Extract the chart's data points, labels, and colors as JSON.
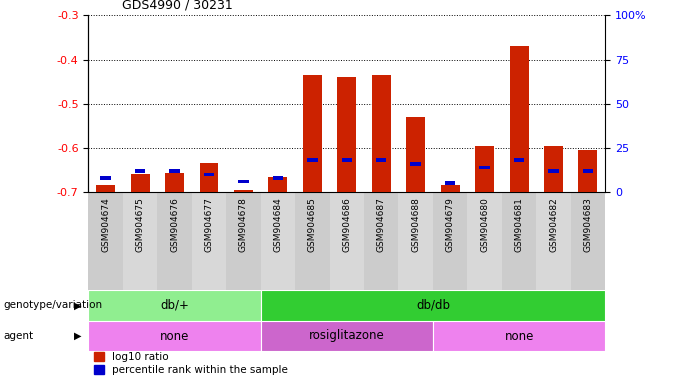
{
  "title": "GDS4990 / 30231",
  "samples": [
    "GSM904674",
    "GSM904675",
    "GSM904676",
    "GSM904677",
    "GSM904678",
    "GSM904684",
    "GSM904685",
    "GSM904686",
    "GSM904687",
    "GSM904688",
    "GSM904679",
    "GSM904680",
    "GSM904681",
    "GSM904682",
    "GSM904683"
  ],
  "log10_ratio": [
    -0.685,
    -0.66,
    -0.658,
    -0.635,
    -0.695,
    -0.665,
    -0.435,
    -0.44,
    -0.435,
    -0.53,
    -0.685,
    -0.595,
    -0.37,
    -0.595,
    -0.605
  ],
  "percentile_rank": [
    8,
    12,
    12,
    10,
    6,
    8,
    18,
    18,
    18,
    16,
    5,
    14,
    18,
    12,
    12
  ],
  "ylim_left": [
    -0.7,
    -0.3
  ],
  "ylim_right": [
    0,
    100
  ],
  "yticks_left": [
    -0.7,
    -0.6,
    -0.5,
    -0.4,
    -0.3
  ],
  "yticks_right": [
    0,
    25,
    50,
    75,
    100
  ],
  "genotype_groups": [
    {
      "label": "db/+",
      "start": 0,
      "end": 5,
      "color": "#90EE90"
    },
    {
      "label": "db/db",
      "start": 5,
      "end": 15,
      "color": "#32CD32"
    }
  ],
  "agent_groups": [
    {
      "label": "none",
      "start": 0,
      "end": 5,
      "color": "#EE82EE"
    },
    {
      "label": "rosiglitazone",
      "start": 5,
      "end": 10,
      "color": "#CC66CC"
    },
    {
      "label": "none",
      "start": 10,
      "end": 15,
      "color": "#EE82EE"
    }
  ],
  "bar_color": "#CC2200",
  "percentile_color": "#0000CC",
  "genotype_label": "genotype/variation",
  "agent_label": "agent",
  "legend_red": "log10 ratio",
  "legend_blue": "percentile rank within the sample"
}
